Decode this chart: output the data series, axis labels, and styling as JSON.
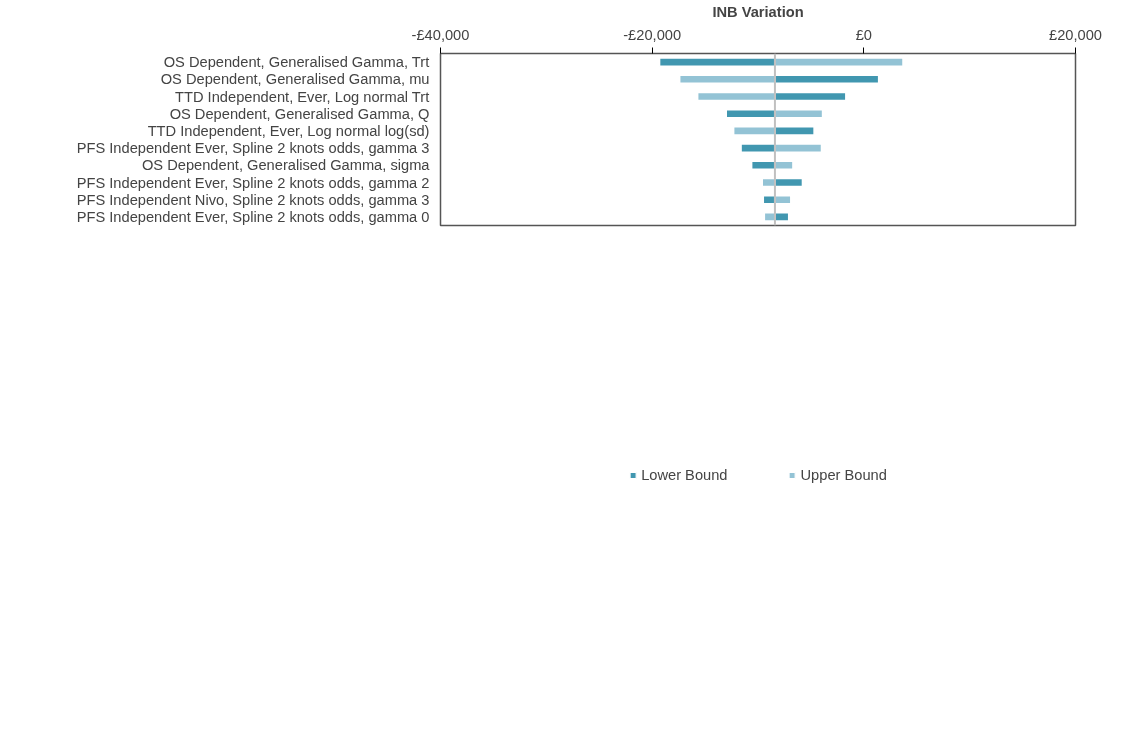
{
  "chart_data": {
    "type": "bar",
    "orientation": "horizontal",
    "xlabel": "INB Variation",
    "categories": [
      "OS Dependent, Generalised Gamma, Trt",
      "OS Dependent, Generalised Gamma, mu",
      "TTD Independent, Ever, Log normal Trt",
      "OS Dependent, Generalised Gamma, Q",
      "TTD Independent, Ever, Log normal log(sd)",
      "PFS Independent Ever, Spline 2 knots odds, gamma 3",
      "OS Dependent, Generalised Gamma, sigma",
      "PFS Independent Ever, Spline 2 knots odds, gamma 2",
      "PFS Independent Nivo, Spline 2 knots odds, gamma 3",
      "PFS Independent Ever, Spline 2 knots odds, gamma 0"
    ],
    "series": [
      {
        "name": "Lower Bound",
        "color": "#4197b0",
        "base": [
          -8400,
          -8400,
          -8400,
          -8400,
          -8400,
          -8400,
          -8400,
          -8400,
          -8400,
          -8400
        ],
        "values": [
          -10900,
          9800,
          6700,
          -4600,
          3700,
          -3200,
          -2200,
          2600,
          -1100,
          1300
        ]
      },
      {
        "name": "Upper Bound",
        "color": "#93c3d5",
        "base": [
          -8400,
          -8400,
          -8400,
          -8400,
          -8400,
          -8400,
          -8400,
          -8400,
          -8400,
          -8400
        ],
        "values": [
          12100,
          -9000,
          -7300,
          4500,
          -3900,
          4400,
          1700,
          -1200,
          1500,
          -1000
        ]
      }
    ],
    "xlim": [
      -40000,
      20000
    ],
    "xticks": [
      {
        "value": -40000,
        "label": "-£40,000"
      },
      {
        "value": -20000,
        "label": "-£20,000"
      },
      {
        "value": 0,
        "label": "£0"
      },
      {
        "value": 20000,
        "label": "£20,000"
      }
    ],
    "ref_lines": [
      {
        "axis": "x",
        "value": -8400,
        "color": "#c0c0c0"
      }
    ],
    "grid": false,
    "legend": "bottom"
  }
}
